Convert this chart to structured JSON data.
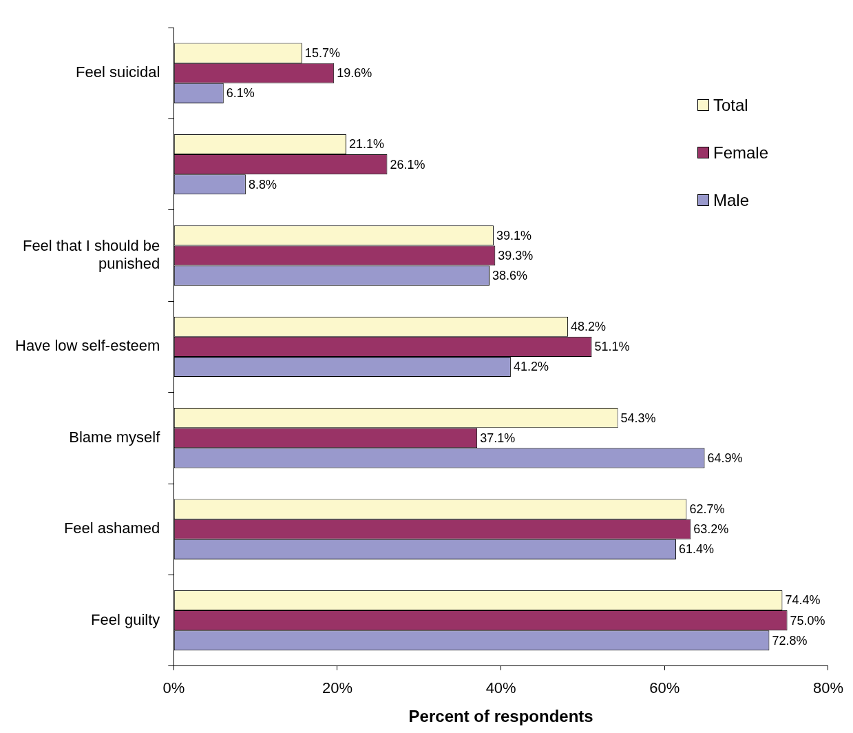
{
  "chart_data": {
    "type": "bar",
    "orientation": "horizontal",
    "xlabel": "Percent of respondents",
    "categories": [
      "Feel suicidal",
      null,
      "Feel that I should be punished",
      "Have low self-esteem",
      "Blame myself",
      "Feel ashamed",
      "Feel guilty"
    ],
    "series": [
      {
        "name": "Total",
        "color": "#fcf8cc",
        "values": [
          15.7,
          21.1,
          39.1,
          48.2,
          54.3,
          62.7,
          74.4
        ]
      },
      {
        "name": "Female",
        "color": "#993366",
        "values": [
          19.6,
          26.1,
          39.3,
          51.1,
          37.1,
          63.2,
          75.0
        ]
      },
      {
        "name": "Male",
        "color": "#9999cc",
        "values": [
          6.1,
          8.8,
          38.6,
          41.2,
          64.9,
          61.4,
          72.8
        ]
      }
    ],
    "value_labels": [
      [
        "15.7%",
        "21.1%",
        "39.1%",
        "48.2%",
        "54.3%",
        "62.7%",
        "74.4%"
      ],
      [
        "19.6%",
        "26.1%",
        "39.3%",
        "51.1%",
        "37.1%",
        "63.2%",
        "75.0%"
      ],
      [
        "6.1%",
        "8.8%",
        "38.6%",
        "41.2%",
        "64.9%",
        "61.4%",
        "72.8%"
      ]
    ],
    "xlim": [
      0,
      80
    ],
    "xticks": [
      {
        "value": 0,
        "label": "0%"
      },
      {
        "value": 20,
        "label": "20%"
      },
      {
        "value": 40,
        "label": "40%"
      },
      {
        "value": 60,
        "label": "60%"
      },
      {
        "value": 80,
        "label": "80%"
      }
    ],
    "grid": false,
    "legend": "top right"
  }
}
